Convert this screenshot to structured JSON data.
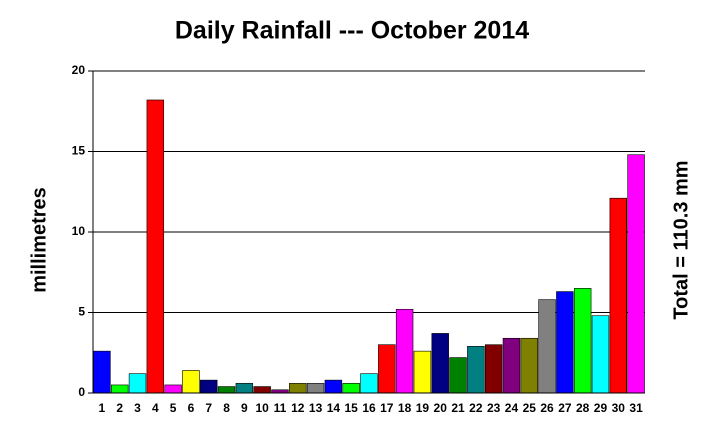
{
  "chart_data": {
    "type": "bar",
    "title": "Daily Rainfall --- October 2014",
    "y_label": "millimetres",
    "annotation": "Total = 110.3 mm",
    "categories": [
      "1",
      "2",
      "3",
      "4",
      "5",
      "6",
      "7",
      "8",
      "9",
      "10",
      "11",
      "12",
      "13",
      "14",
      "15",
      "16",
      "17",
      "18",
      "19",
      "20",
      "21",
      "22",
      "23",
      "24",
      "25",
      "26",
      "27",
      "28",
      "29",
      "30",
      "31"
    ],
    "values": [
      2.6,
      0.5,
      1.2,
      18.2,
      0.5,
      1.4,
      0.8,
      0.4,
      0.6,
      0.4,
      0.2,
      0.6,
      0.6,
      0.8,
      0.6,
      1.2,
      3.0,
      5.2,
      2.6,
      3.7,
      2.2,
      2.9,
      3.0,
      3.4,
      3.4,
      5.8,
      6.3,
      6.5,
      4.8,
      12.1,
      14.8
    ],
    "colors": [
      "#0000ff",
      "#00ff00",
      "#00ffff",
      "#ff0000",
      "#ff00ff",
      "#ffff00",
      "#000080",
      "#008000",
      "#008080",
      "#800000",
      "#800080",
      "#808000",
      "#808080",
      "#0000ff",
      "#00ff00",
      "#00ffff",
      "#ff0000",
      "#ff00ff",
      "#ffff00",
      "#000080",
      "#008000",
      "#008080",
      "#800000",
      "#800080",
      "#808000",
      "#808080",
      "#0000ff",
      "#00ff00",
      "#00ffff",
      "#ff0000",
      "#ff00ff"
    ],
    "ylim": [
      0,
      20
    ],
    "yticks": [
      0,
      5,
      10,
      15,
      20
    ],
    "grid": true
  }
}
